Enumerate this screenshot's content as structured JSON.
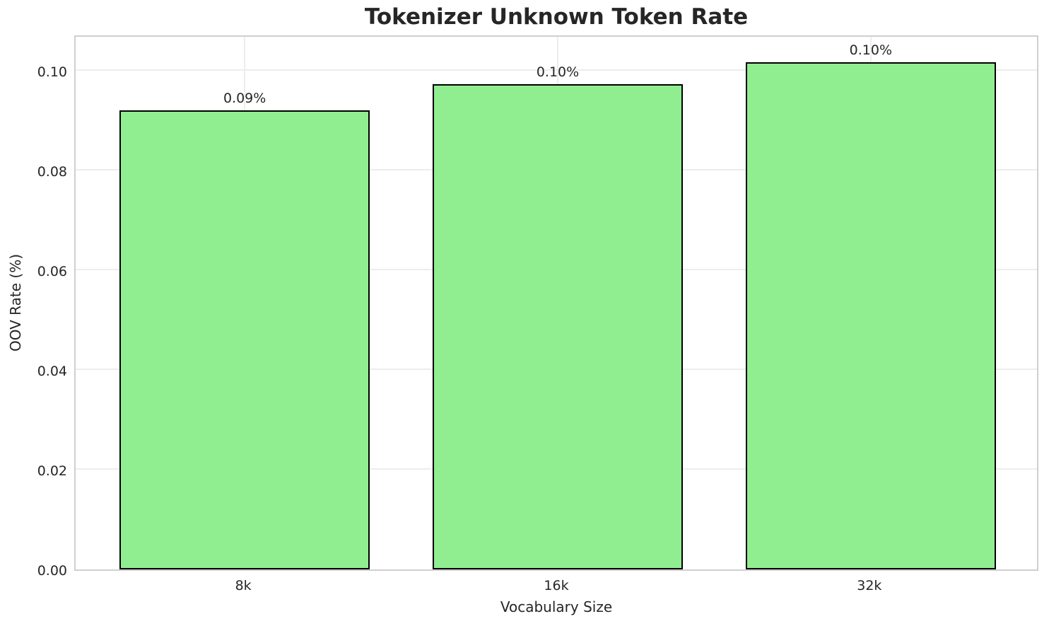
{
  "chart_data": {
    "type": "bar",
    "title": "Tokenizer Unknown Token Rate",
    "xlabel": "Vocabulary Size",
    "ylabel": "OOV Rate (%)",
    "categories": [
      "8k",
      "16k",
      "32k"
    ],
    "values": [
      0.092,
      0.0973,
      0.1017
    ],
    "value_labels": [
      "0.09%",
      "0.10%",
      "0.10%"
    ],
    "ylim": [
      0,
      0.1073
    ],
    "yticks": [
      {
        "value": 0.0,
        "label": "0.00"
      },
      {
        "value": 0.02,
        "label": "0.02"
      },
      {
        "value": 0.04,
        "label": "0.04"
      },
      {
        "value": 0.06,
        "label": "0.06"
      },
      {
        "value": 0.08,
        "label": "0.08"
      },
      {
        "value": 0.1,
        "label": "0.10"
      }
    ],
    "grid": "both",
    "legend_position": "none",
    "bar_color": "#90EE90",
    "bar_edge_color": "#000000",
    "text_color": "#262626",
    "grid_color": "#ededed",
    "spine_color": "#cfcfcf",
    "background_color": "#ffffff",
    "bar_width_fraction": 0.8,
    "x_margin_fraction": 0.54
  }
}
